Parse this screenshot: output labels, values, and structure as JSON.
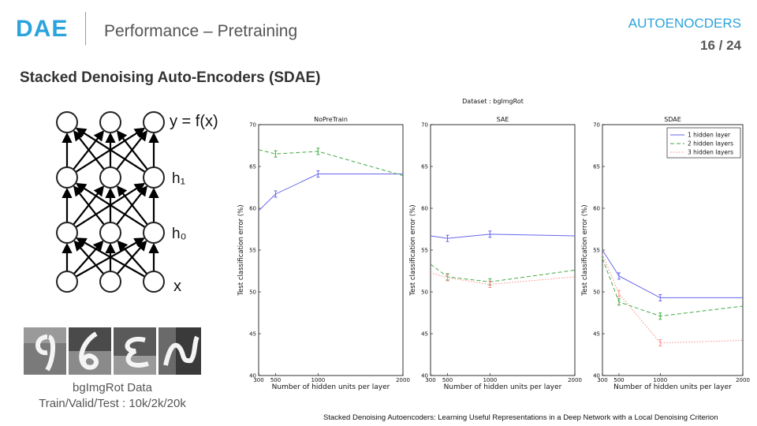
{
  "header": {
    "logo": "DAE",
    "subtitle": "Performance – Pretraining",
    "section": "AUTOENOCDERS",
    "page": "16 / 24"
  },
  "heading": "Stacked Denoising Auto-Encoders (SDAE)",
  "network": {
    "output_label": "y = f(x)",
    "h1_label": "h₁",
    "h0_label": "h₀",
    "input_label": "x"
  },
  "data_caption": {
    "line1": "bgImgRot Data",
    "line2": "Train/Valid/Test : 10k/2k/20k"
  },
  "citation": "Stacked Denoising Autoencoders: Learning Useful Representations in a Deep Network with a Local Denoising Criterion",
  "figure_title": "Dataset : bgImgRot",
  "colors": {
    "s1": "#6666ee",
    "s2": "#44aa44",
    "s3": "#ff8888",
    "accent": "#2ba3dc"
  },
  "chart_data": [
    {
      "type": "line",
      "title": "NoPreTrain",
      "xlabel": "Number of hidden units per layer",
      "ylabel": "Test classification error (%)",
      "xlim": [
        300,
        2000
      ],
      "ylim": [
        40,
        70
      ],
      "xticks": [
        300,
        500,
        1000,
        2000
      ],
      "yticks": [
        40,
        45,
        50,
        55,
        60,
        65,
        70
      ],
      "series": [
        {
          "name": "1 hidden layer",
          "x": [
            300,
            500,
            1000,
            2000
          ],
          "values": [
            59.7,
            61.7,
            64.1,
            64.1
          ]
        },
        {
          "name": "2 hidden layers",
          "x": [
            300,
            500,
            1000,
            2000
          ],
          "values": [
            67.0,
            66.5,
            66.8,
            63.9
          ]
        }
      ]
    },
    {
      "type": "line",
      "title": "SAE",
      "xlabel": "Number of hidden units per layer",
      "ylabel": "Test classification error (%)",
      "xlim": [
        300,
        2000
      ],
      "ylim": [
        40,
        70
      ],
      "xticks": [
        300,
        500,
        1000,
        2000
      ],
      "yticks": [
        40,
        45,
        50,
        55,
        60,
        65,
        70
      ],
      "series": [
        {
          "name": "1 hidden layer",
          "x": [
            300,
            500,
            1000,
            2000
          ],
          "values": [
            56.7,
            56.4,
            56.9,
            56.7
          ]
        },
        {
          "name": "2 hidden layers",
          "x": [
            300,
            500,
            1000,
            2000
          ],
          "values": [
            53.3,
            51.8,
            51.2,
            52.6
          ]
        },
        {
          "name": "3 hidden layers",
          "x": [
            300,
            500,
            1000,
            2000
          ],
          "values": [
            52.3,
            51.7,
            50.9,
            51.8
          ]
        }
      ]
    },
    {
      "type": "line",
      "title": "SDAE",
      "xlabel": "Number of hidden units per layer",
      "ylabel": "Test classification error (%)",
      "xlim": [
        300,
        2000
      ],
      "ylim": [
        40,
        70
      ],
      "xticks": [
        300,
        500,
        1000,
        2000
      ],
      "yticks": [
        40,
        45,
        50,
        55,
        60,
        65,
        70
      ],
      "legend": "top-right",
      "series": [
        {
          "name": "1 hidden layer",
          "x": [
            300,
            500,
            1000,
            2000
          ],
          "values": [
            55.0,
            51.9,
            49.3,
            49.3
          ]
        },
        {
          "name": "2 hidden layers",
          "x": [
            300,
            500,
            1000,
            2000
          ],
          "values": [
            54.0,
            48.8,
            47.1,
            48.3
          ]
        },
        {
          "name": "3 hidden layers",
          "x": [
            300,
            500,
            1000,
            2000
          ],
          "values": [
            54.5,
            49.8,
            43.9,
            44.2
          ]
        }
      ]
    }
  ]
}
